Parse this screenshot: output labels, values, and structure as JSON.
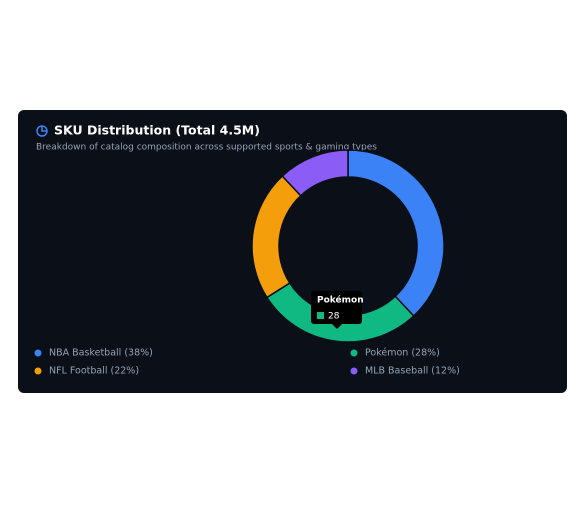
{
  "chart_data": {
    "type": "donut",
    "title": "SKU Distribution (Total 4.5M)",
    "subtitle": "Breakdown of catalog composition across supported sports & gaming types",
    "legend_labels": [
      "NBA Basketball (38%)",
      "Pokémon (28%)",
      "NFL Football (22%)",
      "MLB Baseball (12%)"
    ],
    "values": [
      38,
      28,
      22,
      12
    ],
    "colors": [
      "#3b82f6",
      "#10b981",
      "#f59e0b",
      "#8b5cf6"
    ],
    "tooltip": {
      "title": "Pokémon",
      "index": 1
    }
  }
}
